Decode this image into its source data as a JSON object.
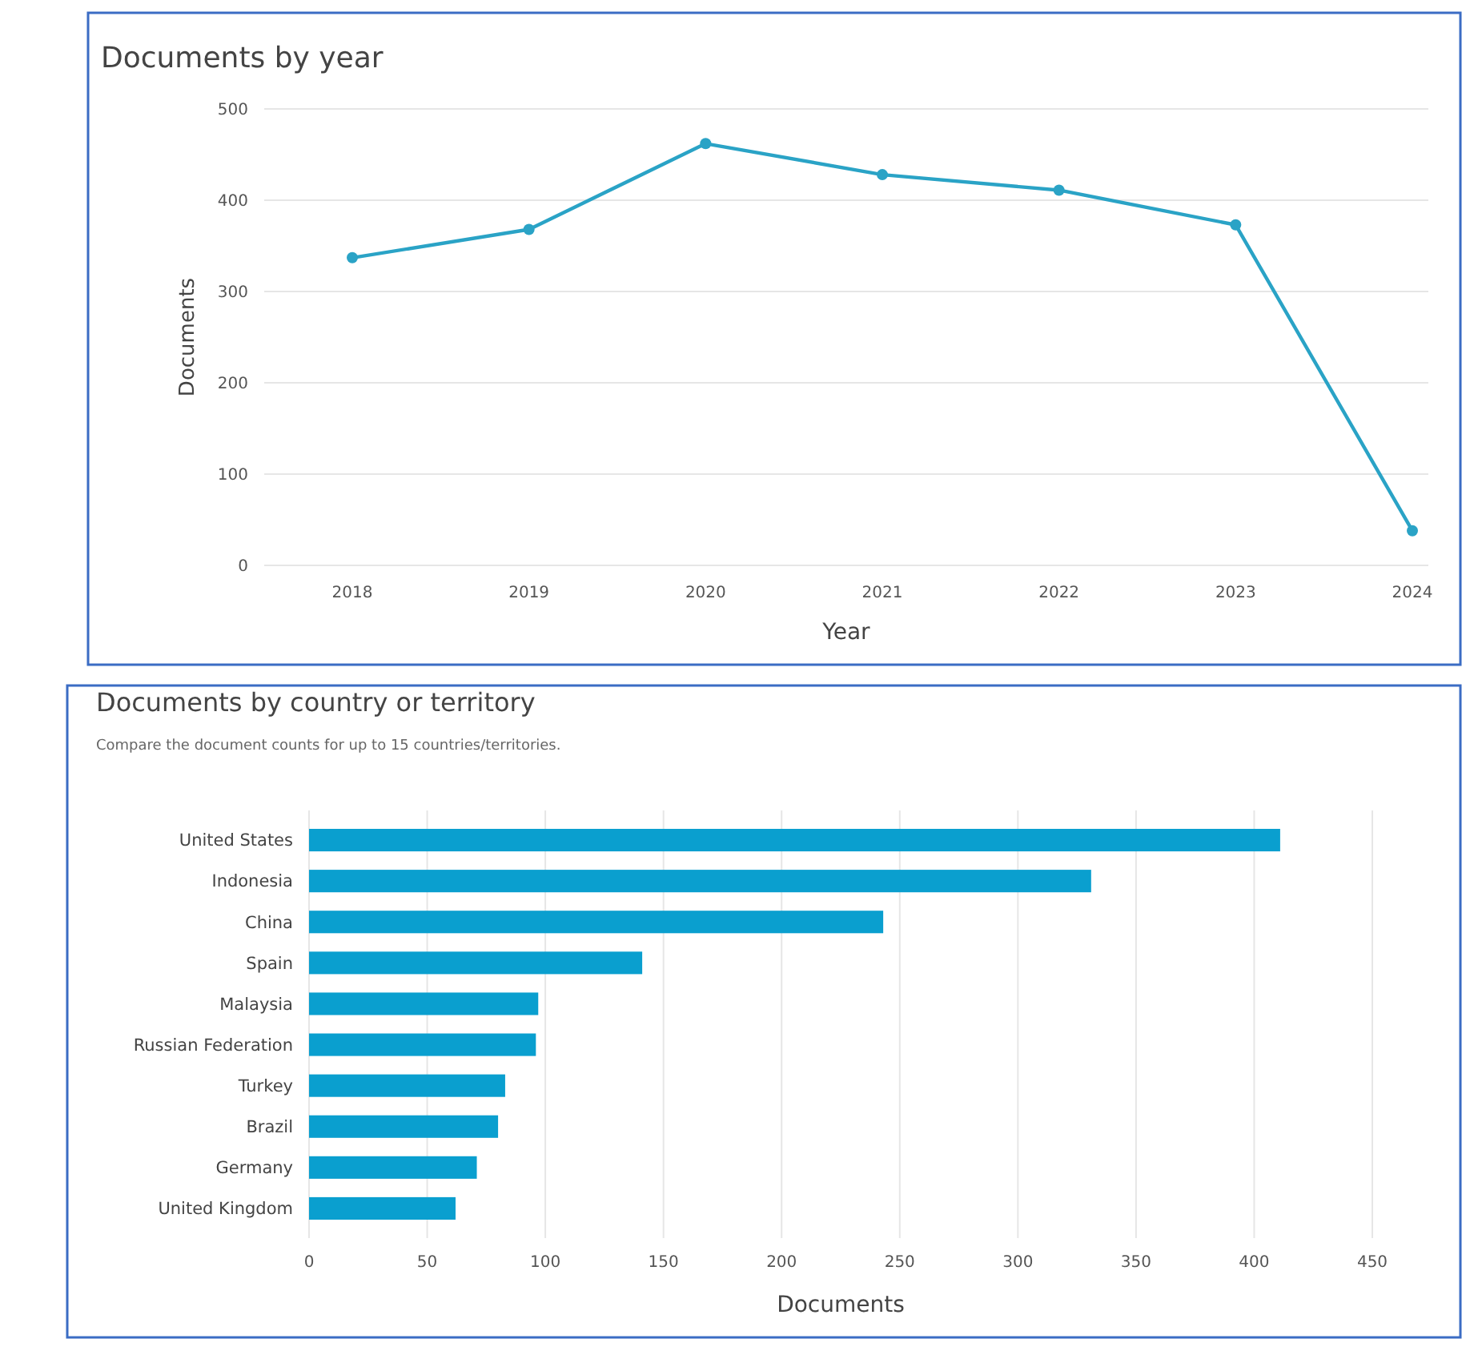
{
  "chart_data": [
    {
      "type": "line",
      "title": "Documents by year",
      "xlabel": "Year",
      "ylabel": "Documents",
      "categories": [
        "2018",
        "2019",
        "2020",
        "2021",
        "2022",
        "2023",
        "2024"
      ],
      "series": [
        {
          "color": "#2aa3c6",
          "values": [
            337,
            368,
            462,
            428,
            411,
            373,
            38
          ]
        }
      ],
      "ylim": [
        0,
        500
      ],
      "yticks": [
        0,
        100,
        200,
        300,
        400,
        500
      ],
      "grid": "y",
      "marker": "circle",
      "line_style": "solid"
    },
    {
      "type": "bar",
      "orientation": "horizontal",
      "title": "Documents by country or territory",
      "subtitle": "Compare the document counts for up to 15 countries/territories.",
      "xlabel": "Documents",
      "categories": [
        "United States",
        "Indonesia",
        "China",
        "Spain",
        "Malaysia",
        "Russian Federation",
        "Turkey",
        "Brazil",
        "Germany",
        "United Kingdom"
      ],
      "series": [
        {
          "color": "#0a9fcf",
          "values": [
            411,
            331,
            243,
            141,
            97,
            96,
            83,
            80,
            71,
            62
          ]
        }
      ],
      "xlim": [
        0,
        450
      ],
      "xticks": [
        0,
        50,
        100,
        150,
        200,
        250,
        300,
        350,
        400,
        450
      ],
      "grid": "x"
    }
  ]
}
